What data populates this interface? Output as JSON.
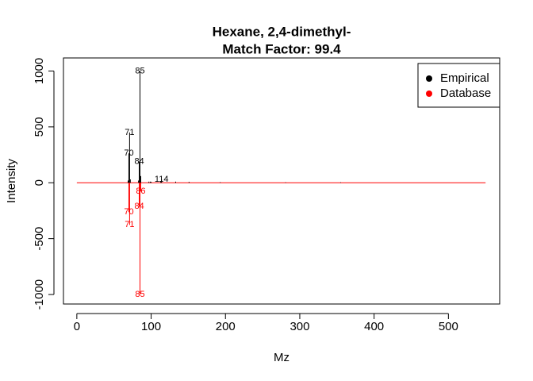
{
  "chart_data": {
    "type": "spectrum",
    "title": "Hexane, 2,4-dimethyl-",
    "subtitle": "Match Factor: 99.4",
    "x_label": "Mz",
    "y_label": "Intensity",
    "xlim": [
      -18,
      569
    ],
    "ylim": [
      -1085,
      1117
    ],
    "xticks": [
      0,
      100,
      200,
      300,
      400,
      500
    ],
    "yticks": [
      -1000,
      -500,
      0,
      500,
      1000
    ],
    "zero_line": {
      "color": "#ff0000",
      "x": [
        0,
        550
      ]
    },
    "legend": "top-right",
    "series": [
      {
        "name": "Empirical",
        "color": "#000000",
        "x": [
          69,
          70,
          71,
          72,
          83,
          84,
          85,
          86,
          97,
          99,
          100,
          113,
          114,
          133,
          151,
          193,
          281,
          355
        ],
        "values": [
          20,
          263,
          450,
          30,
          20,
          190,
          999,
          60,
          10,
          10,
          8,
          15,
          30,
          10,
          8,
          5,
          4,
          4
        ],
        "labels": [
          null,
          "70",
          "71",
          null,
          null,
          "84",
          "85",
          null,
          null,
          null,
          null,
          null,
          "114",
          null,
          null,
          null,
          null,
          null
        ]
      },
      {
        "name": "Database",
        "color": "#ff0000",
        "x": [
          70,
          71,
          84,
          85,
          86
        ],
        "values": [
          -263,
          -377,
          -213,
          -1000,
          -78
        ],
        "labels": [
          "70",
          "71",
          "84",
          "85",
          "86"
        ]
      }
    ]
  }
}
